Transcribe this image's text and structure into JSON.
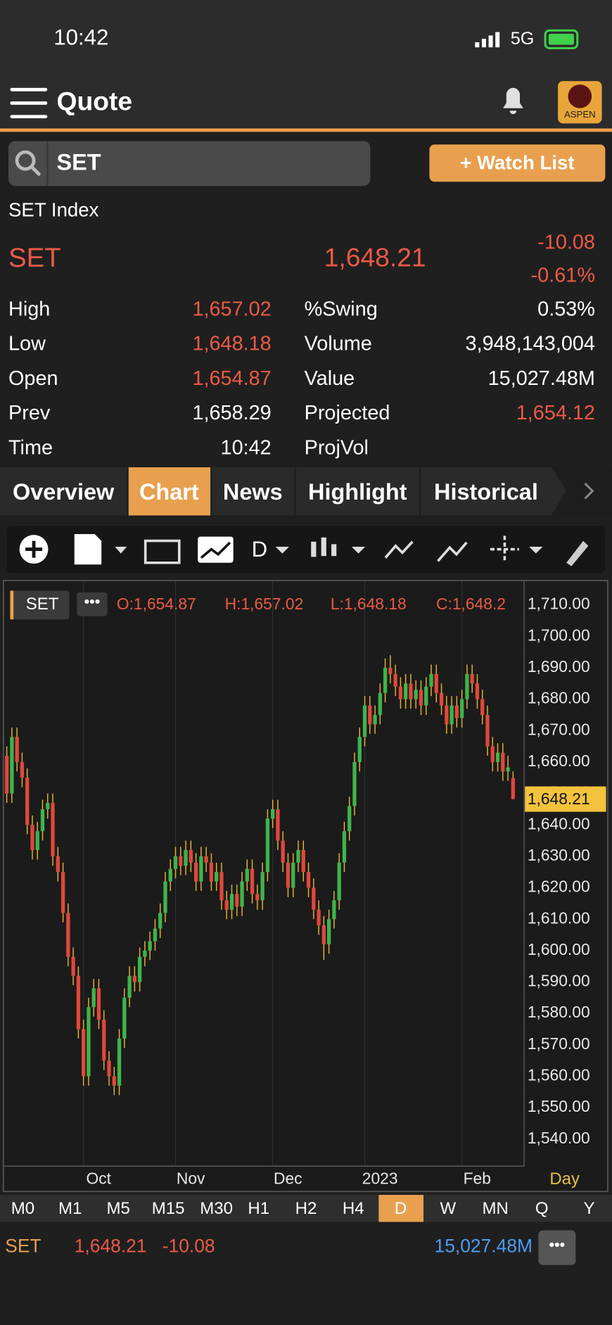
{
  "status_bar": {
    "time": "10:42",
    "network": "5G"
  },
  "header": {
    "title": "Quote",
    "logo": "ASPEN"
  },
  "search": {
    "query": "SET",
    "button": "+ Watch List"
  },
  "quote": {
    "name": "SET Index",
    "symbol": "SET",
    "price": "1,648.21",
    "change": "-10.08",
    "change_percent": "-0.61%",
    "stats": [
      {
        "label": "High",
        "value": "1,657.02"
      },
      {
        "label": "Low",
        "value": "1,648.18"
      },
      {
        "label": "Open",
        "value": "1,654.87"
      },
      {
        "label": "Prev",
        "value": "1,658.29"
      },
      {
        "label": "Time",
        "value": "10:42"
      }
    ],
    "stats_right": [
      {
        "label": "%Swing",
        "value": "0.53%"
      },
      {
        "label": "Volume",
        "value": "3,948,143,004"
      },
      {
        "label": "Value",
        "value": "15,027.48M"
      },
      {
        "label": "Projected",
        "value": "1,654.12"
      },
      {
        "label": "ProjVol"
      }
    ]
  },
  "tabs": [
    "Overview",
    "Chart",
    "News",
    "Highlight",
    "Historical"
  ],
  "toolbar": {
    "period": "D"
  },
  "chart_data": {
    "type": "candlestick",
    "symbol": "SET",
    "legend": [
      "O:1,654.87",
      "H:1,657.02",
      "L:1,648.18",
      "C:1,648.2"
    ],
    "up_color": "#3fb449",
    "down_color": "#e0473b",
    "wick_color": "#e9b532",
    "categories": [
      null,
      null,
      null,
      null,
      null,
      null,
      null,
      null,
      null,
      null,
      null,
      null,
      null,
      null,
      null,
      "Oct",
      null,
      null,
      null,
      null,
      null,
      null,
      null,
      null,
      null,
      null,
      null,
      null,
      null,
      null,
      null,
      null,
      null,
      "Nov",
      null,
      null,
      null,
      null,
      null,
      null,
      null,
      null,
      null,
      null,
      null,
      null,
      null,
      null,
      null,
      null,
      null,
      null,
      "Dec",
      null,
      null,
      null,
      null,
      null,
      null,
      null,
      null,
      null,
      null,
      null,
      null,
      null,
      null,
      null,
      null,
      null,
      "2023",
      null,
      null,
      null,
      null,
      null,
      null,
      null,
      null,
      null,
      null,
      null,
      null,
      null,
      null,
      null,
      null,
      null,
      null,
      "Feb",
      null,
      null,
      null,
      null,
      null,
      null,
      null,
      null,
      null,
      null
    ],
    "ohlc": [
      [
        1662,
        1665,
        1647,
        1650
      ],
      [
        1650,
        1671,
        1647,
        1668
      ],
      [
        1668,
        1671,
        1657,
        1660
      ],
      [
        1660,
        1663,
        1652,
        1655
      ],
      [
        1655,
        1658,
        1637,
        1640
      ],
      [
        1640,
        1643,
        1629,
        1632
      ],
      [
        1632,
        1641,
        1629,
        1638
      ],
      [
        1638,
        1648,
        1635,
        1645
      ],
      [
        1645,
        1650,
        1642,
        1647
      ],
      [
        1647,
        1650,
        1627,
        1630
      ],
      [
        1630,
        1633,
        1622,
        1625
      ],
      [
        1625,
        1628,
        1609,
        1612
      ],
      [
        1612,
        1615,
        1595,
        1598
      ],
      [
        1598,
        1601,
        1589,
        1592
      ],
      [
        1592,
        1595,
        1572,
        1575
      ],
      [
        1575,
        1578,
        1557,
        1560
      ],
      [
        1560,
        1585,
        1557,
        1582
      ],
      [
        1582,
        1591,
        1579,
        1588
      ],
      [
        1588,
        1591,
        1575,
        1578
      ],
      [
        1578,
        1581,
        1562,
        1565
      ],
      [
        1565,
        1568,
        1557,
        1560
      ],
      [
        1560,
        1563,
        1554,
        1557
      ],
      [
        1557,
        1575,
        1554,
        1572
      ],
      [
        1572,
        1588,
        1569,
        1585
      ],
      [
        1585,
        1595,
        1582,
        1592
      ],
      [
        1592,
        1595,
        1587,
        1590
      ],
      [
        1590,
        1601,
        1587,
        1598
      ],
      [
        1598,
        1603,
        1595,
        1600
      ],
      [
        1600,
        1606,
        1597,
        1603
      ],
      [
        1603,
        1610,
        1600,
        1607
      ],
      [
        1607,
        1615,
        1604,
        1612
      ],
      [
        1612,
        1625,
        1609,
        1622
      ],
      [
        1622,
        1629,
        1619,
        1626
      ],
      [
        1626,
        1633,
        1623,
        1630
      ],
      [
        1630,
        1633,
        1624,
        1627
      ],
      [
        1627,
        1635,
        1624,
        1632
      ],
      [
        1632,
        1635,
        1625,
        1628
      ],
      [
        1628,
        1631,
        1619,
        1622
      ],
      [
        1622,
        1633,
        1619,
        1630
      ],
      [
        1630,
        1633,
        1625,
        1628
      ],
      [
        1628,
        1631,
        1619,
        1622
      ],
      [
        1622,
        1628,
        1619,
        1625
      ],
      [
        1625,
        1628,
        1613,
        1616
      ],
      [
        1616,
        1619,
        1610,
        1613
      ],
      [
        1613,
        1621,
        1610,
        1618
      ],
      [
        1618,
        1621,
        1611,
        1614
      ],
      [
        1614,
        1625,
        1611,
        1622
      ],
      [
        1622,
        1629,
        1619,
        1626
      ],
      [
        1626,
        1629,
        1615,
        1618
      ],
      [
        1618,
        1621,
        1613,
        1616
      ],
      [
        1616,
        1628,
        1613,
        1625
      ],
      [
        1625,
        1645,
        1622,
        1642
      ],
      [
        1642,
        1648,
        1639,
        1645
      ],
      [
        1645,
        1648,
        1632,
        1635
      ],
      [
        1635,
        1638,
        1625,
        1628
      ],
      [
        1628,
        1631,
        1617,
        1620
      ],
      [
        1620,
        1631,
        1617,
        1628
      ],
      [
        1628,
        1635,
        1625,
        1632
      ],
      [
        1632,
        1635,
        1622,
        1625
      ],
      [
        1625,
        1628,
        1617,
        1620
      ],
      [
        1620,
        1623,
        1610,
        1613
      ],
      [
        1613,
        1616,
        1605,
        1608
      ],
      [
        1608,
        1611,
        1597,
        1602
      ],
      [
        1602,
        1613,
        1599,
        1610
      ],
      [
        1610,
        1619,
        1607,
        1616
      ],
      [
        1616,
        1631,
        1613,
        1628
      ],
      [
        1628,
        1641,
        1625,
        1638
      ],
      [
        1638,
        1649,
        1635,
        1646
      ],
      [
        1646,
        1663,
        1643,
        1660
      ],
      [
        1660,
        1671,
        1657,
        1668
      ],
      [
        1668,
        1681,
        1665,
        1678
      ],
      [
        1678,
        1681,
        1669,
        1672
      ],
      [
        1672,
        1678,
        1669,
        1675
      ],
      [
        1675,
        1685,
        1672,
        1682
      ],
      [
        1682,
        1693,
        1679,
        1690
      ],
      [
        1690,
        1694,
        1685,
        1688
      ],
      [
        1688,
        1691,
        1681,
        1684
      ],
      [
        1684,
        1687,
        1677,
        1680
      ],
      [
        1680,
        1688,
        1677,
        1685
      ],
      [
        1685,
        1688,
        1677,
        1680
      ],
      [
        1680,
        1686,
        1677,
        1683
      ],
      [
        1683,
        1686,
        1675,
        1678
      ],
      [
        1678,
        1687,
        1675,
        1684
      ],
      [
        1684,
        1691,
        1681,
        1688
      ],
      [
        1688,
        1691,
        1679,
        1682
      ],
      [
        1682,
        1685,
        1675,
        1678
      ],
      [
        1678,
        1681,
        1669,
        1672
      ],
      [
        1672,
        1681,
        1669,
        1678
      ],
      [
        1678,
        1681,
        1671,
        1674
      ],
      [
        1674,
        1683,
        1671,
        1680
      ],
      [
        1680,
        1691,
        1677,
        1688
      ],
      [
        1688,
        1691,
        1682,
        1685
      ],
      [
        1685,
        1688,
        1677,
        1680
      ],
      [
        1680,
        1683,
        1672,
        1675
      ],
      [
        1675,
        1678,
        1662,
        1665
      ],
      [
        1665,
        1668,
        1657,
        1660
      ],
      [
        1660,
        1666,
        1657,
        1663
      ],
      [
        1663,
        1666,
        1654,
        1657
      ],
      [
        1657,
        1662,
        1654,
        1658.29
      ],
      [
        1654.87,
        1657.02,
        1648.18,
        1648.21
      ]
    ],
    "ylim": [
      1531.4,
      1717.5
    ],
    "yticks": [
      {
        "value": 1540,
        "label": "1,540.00"
      },
      {
        "value": 1550,
        "label": "1,550.00"
      },
      {
        "value": 1560,
        "label": "1,560.00"
      },
      {
        "value": 1570,
        "label": "1,570.00"
      },
      {
        "value": 1580,
        "label": "1,580.00"
      },
      {
        "value": 1590,
        "label": "1,590.00"
      },
      {
        "value": 1600,
        "label": "1,600.00"
      },
      {
        "value": 1610,
        "label": "1,610.00"
      },
      {
        "value": 1620,
        "label": "1,620.00"
      },
      {
        "value": 1630,
        "label": "1,630.00"
      },
      {
        "value": 1640,
        "label": "1,640.00"
      },
      {
        "value": 1650,
        "label": "1,650.00"
      },
      {
        "value": 1660,
        "label": "1,660.00"
      },
      {
        "value": 1670,
        "label": "1,670.00"
      },
      {
        "value": 1680,
        "label": "1,680.00"
      },
      {
        "value": 1690,
        "label": "1,690.00"
      },
      {
        "value": 1700,
        "label": "1,700.00"
      },
      {
        "value": 1710,
        "label": "1,710.00"
      }
    ],
    "grid": true,
    "last_price_label": "1,648.21",
    "period_label": "Day"
  },
  "timeframes": [
    "M0",
    "M1",
    "M5",
    "M15",
    "M30",
    "H1",
    "H2",
    "H4",
    "D",
    "W",
    "MN",
    "Q",
    "Y"
  ],
  "footer": {
    "symbol": "SET",
    "price": "1,648.21",
    "change": "-10.08",
    "value": "15,027.48M"
  }
}
